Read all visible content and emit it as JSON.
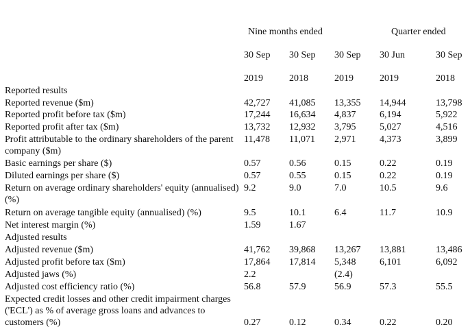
{
  "headers": {
    "group1": "Nine months ended",
    "group2": "Quarter ended",
    "periods": [
      {
        "date": "30 Sep",
        "year": "2019"
      },
      {
        "date": "30 Sep",
        "year": "2018"
      },
      {
        "date": "30 Sep",
        "year": "2019"
      },
      {
        "date": "30 Jun",
        "year": "2019"
      },
      {
        "date": "30 Sep",
        "year": "2018"
      }
    ]
  },
  "rows": [
    {
      "label": "Reported results",
      "values": []
    },
    {
      "label": "Reported revenue ($m)",
      "values": [
        "42,727",
        "41,085",
        "13,355",
        "14,944",
        "13,798"
      ]
    },
    {
      "label": "Reported profit before tax ($m)",
      "values": [
        "17,244",
        "16,634",
        "4,837",
        "6,194",
        "5,922"
      ]
    },
    {
      "label": "Reported profit after tax ($m)",
      "values": [
        "13,732",
        "12,932",
        "3,795",
        "5,027",
        "4,516"
      ]
    },
    {
      "label": "Profit attributable to the ordinary shareholders of the parent company ($m)",
      "values": [
        "11,478",
        "11,071",
        "2,971",
        "4,373",
        "3,899"
      ]
    },
    {
      "label": "Basic earnings per share ($)",
      "values": [
        "0.57",
        "0.56",
        "0.15",
        "0.22",
        "0.19"
      ]
    },
    {
      "label": "Diluted earnings per share ($)",
      "values": [
        "0.57",
        "0.55",
        "0.15",
        "0.22",
        "0.19"
      ]
    },
    {
      "label": "Return on average ordinary shareholders' equity (annualised) (%)",
      "values": [
        "9.2",
        "9.0",
        "7.0",
        "10.5",
        "9.6"
      ]
    },
    {
      "label": "Return on average tangible equity (annualised) (%)",
      "values": [
        "9.5",
        "10.1",
        "6.4",
        "11.7",
        "10.9"
      ]
    },
    {
      "label": "Net interest margin (%)",
      "values": [
        "1.59",
        "1.67",
        "",
        "",
        ""
      ]
    },
    {
      "label": "Adjusted results",
      "values": []
    },
    {
      "label": "Adjusted revenue ($m)",
      "values": [
        "41,762",
        "39,868",
        "13,267",
        "13,881",
        "13,486"
      ]
    },
    {
      "label": "Adjusted profit before tax ($m)",
      "values": [
        "17,864",
        "17,814",
        "5,348",
        "6,101",
        "6,092"
      ]
    },
    {
      "label": "Adjusted jaws (%)",
      "values": [
        "2.2",
        "",
        "(2.4)",
        "",
        ""
      ]
    },
    {
      "label": "Adjusted cost efficiency ratio (%)",
      "values": [
        "56.8",
        "57.9",
        "56.9",
        "57.3",
        "55.5"
      ]
    },
    {
      "label": "Expected credit losses and other credit impairment charges ('ECL') as % of average gross loans and advances to customers (%)",
      "values": [
        "0.27",
        "0.12",
        "0.34",
        "0.22",
        "0.20"
      ]
    }
  ]
}
